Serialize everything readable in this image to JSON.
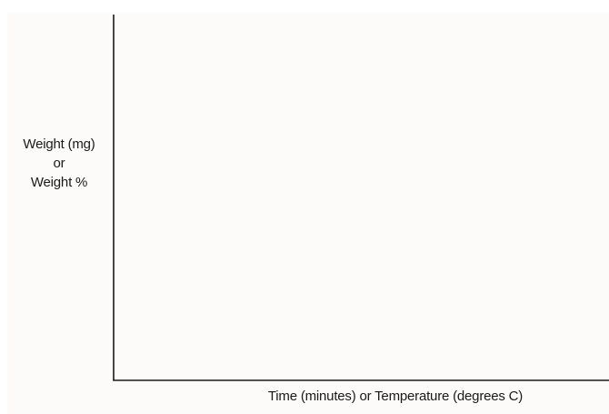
{
  "chart_data": {
    "type": "line",
    "title": "",
    "xlabel": "Time (minutes) or Temperature (degrees C)",
    "ylabel_lines": [
      "Weight (mg)",
      "or",
      "Weight %"
    ],
    "series": [],
    "grid": false,
    "legend": "none"
  },
  "colors": {
    "axis": "#1a1a1a",
    "plot_background": "#fcfbf9",
    "text": "#1a1a1a"
  }
}
